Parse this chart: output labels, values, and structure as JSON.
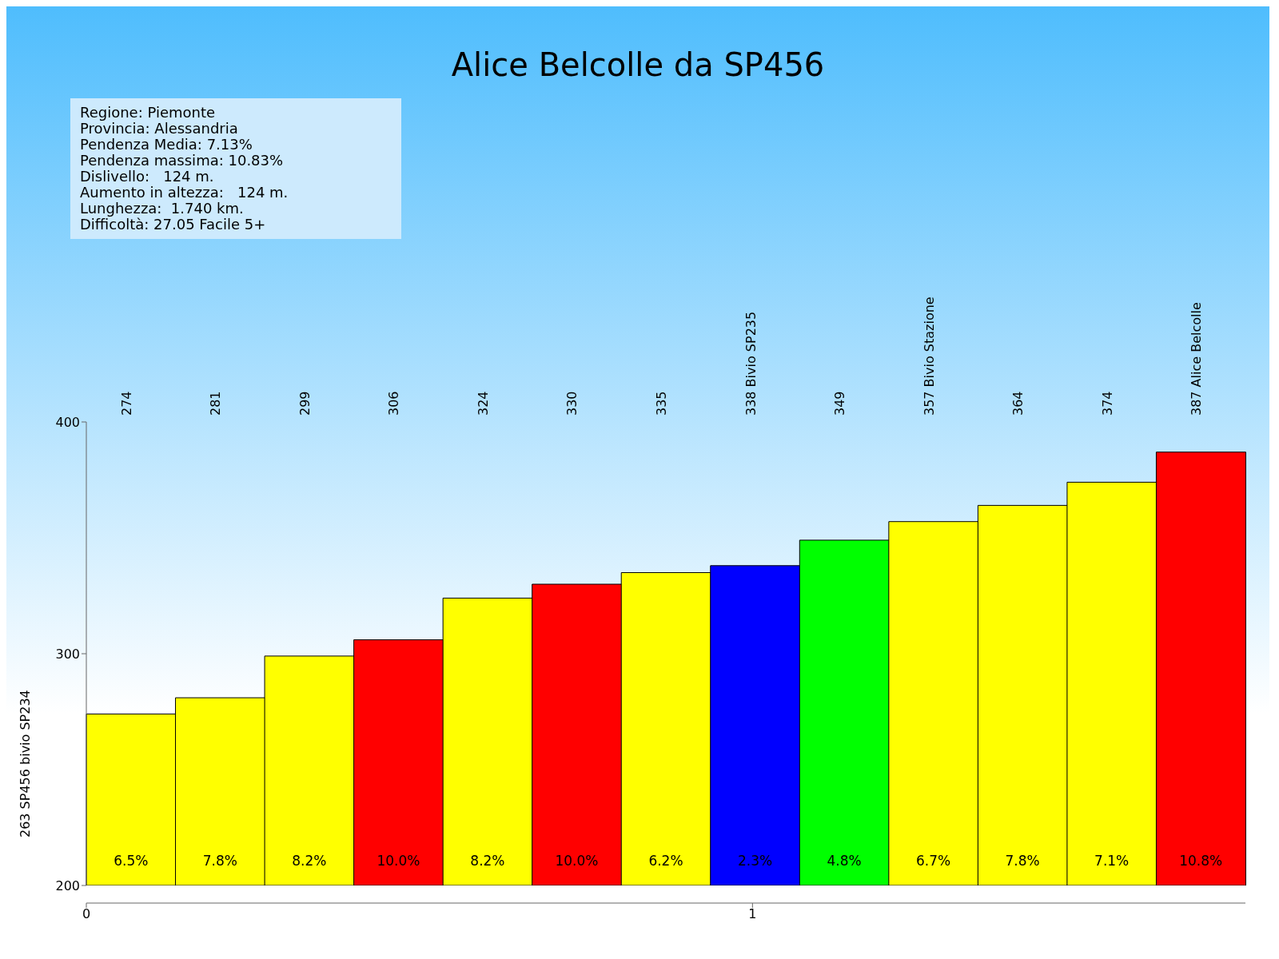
{
  "chart_data": {
    "type": "bar",
    "title": "Alice Belcolle da SP456",
    "categories": [
      "274",
      "281",
      "299",
      "306",
      "324",
      "330",
      "335",
      "338 Bivio SP235",
      "349",
      "357 Bivio Stazione",
      "364",
      "374",
      "387 Alice Belcolle"
    ],
    "values": [
      274,
      281,
      299,
      306,
      324,
      330,
      335,
      338,
      349,
      357,
      364,
      374,
      387
    ],
    "colors": [
      "#ffff00",
      "#ffff00",
      "#ffff00",
      "#ff0000",
      "#ffff00",
      "#ff0000",
      "#ffff00",
      "#0000ff",
      "#00ff00",
      "#ffff00",
      "#ffff00",
      "#ffff00",
      "#ff0000"
    ],
    "ylim": [
      200,
      400
    ],
    "yticks": [
      200,
      300,
      400
    ],
    "x2lim": [
      0,
      1.74
    ],
    "x2ticks": [
      0,
      1
    ],
    "annotations": [
      "Regione: Piemonte",
      "Provincia: Alessandria",
      "Pendenza Media: 7.13%",
      "Pendenza massima: 10.83%",
      "Dislivello:   124 m.",
      "Aumento in altezza:   124 m.",
      "Lunghezza:  1.740 km.",
      "Difficoltà: 27.05 Facile 5+",
      "263 SP456 bivio SP234",
      "6.5%",
      "7.8%",
      "8.2%",
      "10.0%",
      "8.2%",
      "10.0%",
      "6.2%",
      "2.3%",
      "4.8%",
      "6.7%",
      "7.8%",
      "7.1%",
      "10.8%"
    ]
  }
}
